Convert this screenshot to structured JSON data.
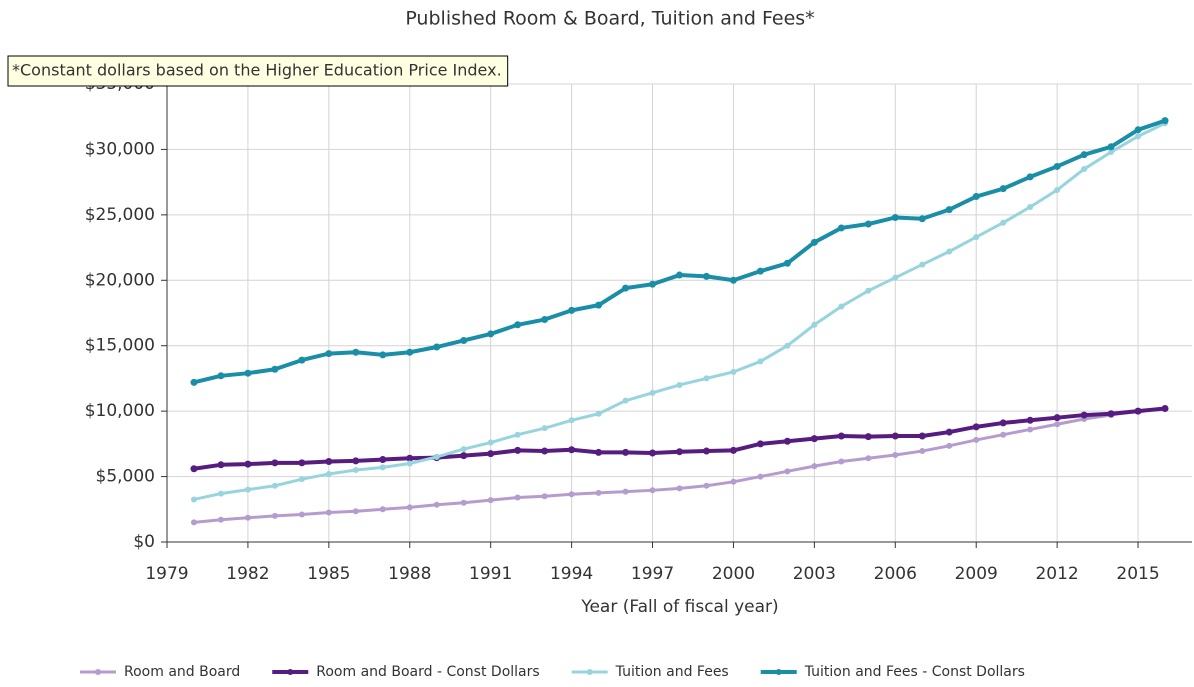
{
  "chart_data": {
    "type": "line",
    "title": "Published Room & Board, Tuition and Fees*",
    "annotation": "*Constant dollars based on the Higher Education Price Index.",
    "x_label": "Year (Fall of fiscal year)",
    "x": [
      1980,
      1981,
      1982,
      1983,
      1984,
      1985,
      1986,
      1987,
      1988,
      1989,
      1990,
      1991,
      1992,
      1993,
      1994,
      1995,
      1996,
      1997,
      1998,
      1999,
      2000,
      2001,
      2002,
      2003,
      2004,
      2005,
      2006,
      2007,
      2008,
      2009,
      2010,
      2011,
      2012,
      2013,
      2014,
      2015,
      2016
    ],
    "series": [
      {
        "name": "Room and Board",
        "color": "#b49ccf",
        "values": [
          1500,
          1700,
          1850,
          2000,
          2100,
          2250,
          2350,
          2500,
          2650,
          2850,
          3000,
          3200,
          3400,
          3500,
          3650,
          3750,
          3850,
          3950,
          4100,
          4300,
          4600,
          5000,
          5400,
          5800,
          6150,
          6400,
          6650,
          6950,
          7350,
          7800,
          8200,
          8600,
          9000,
          9400,
          9700,
          10000,
          10200
        ]
      },
      {
        "name": "Room and Board - Const Dollars",
        "color": "#561c80",
        "values": [
          5600,
          5900,
          5950,
          6050,
          6050,
          6150,
          6200,
          6300,
          6400,
          6450,
          6600,
          6750,
          7000,
          6950,
          7050,
          6850,
          6850,
          6800,
          6900,
          6950,
          7000,
          7500,
          7700,
          7900,
          8100,
          8050,
          8100,
          8100,
          8400,
          8800,
          9100,
          9300,
          9500,
          9700,
          9800,
          10000,
          10200
        ]
      },
      {
        "name": "Tuition and Fees",
        "color": "#97d4de",
        "values": [
          3250,
          3700,
          4000,
          4300,
          4800,
          5200,
          5500,
          5700,
          6000,
          6500,
          7100,
          7600,
          8200,
          8700,
          9300,
          9800,
          10800,
          11400,
          12000,
          12500,
          13000,
          13800,
          15000,
          16600,
          18000,
          19200,
          20200,
          21200,
          22200,
          23300,
          24400,
          25600,
          26900,
          28500,
          29800,
          31000,
          32000
        ]
      },
      {
        "name": "Tuition and Fees - Const Dollars",
        "color": "#1a8ea6",
        "values": [
          12200,
          12700,
          12900,
          13200,
          13900,
          14400,
          14500,
          14300,
          14500,
          14900,
          15400,
          15900,
          16600,
          17000,
          17700,
          18100,
          19400,
          19700,
          20400,
          20300,
          20000,
          20700,
          21300,
          22900,
          24000,
          24300,
          24800,
          24700,
          25400,
          26400,
          27000,
          27900,
          28700,
          29600,
          30200,
          31500,
          32200
        ]
      }
    ],
    "xlim": [
      1979,
      2017
    ],
    "xticks": [
      1979,
      1982,
      1985,
      1988,
      1991,
      1994,
      1997,
      2000,
      2003,
      2006,
      2009,
      2012,
      2015
    ],
    "ylim": [
      0,
      35000
    ],
    "yticks": [
      {
        "value": 0,
        "label": "$0"
      },
      {
        "value": 5000,
        "label": "$5,000"
      },
      {
        "value": 10000,
        "label": "$10,000"
      },
      {
        "value": 15000,
        "label": "$15,000"
      },
      {
        "value": 20000,
        "label": "$20,000"
      },
      {
        "value": 25000,
        "label": "$25,000"
      },
      {
        "value": 30000,
        "label": "$30,000"
      },
      {
        "value": 35000,
        "label": "$35,000"
      }
    ],
    "grid": true,
    "legend": "bottom"
  }
}
